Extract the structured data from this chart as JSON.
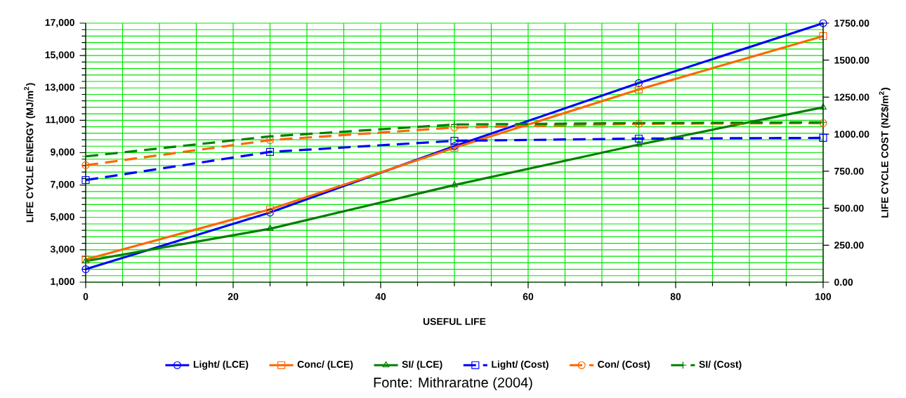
{
  "chart_data": {
    "type": "line",
    "xlabel": "USEFUL LIFE",
    "ylabel": "LIFE CYCLE ENERGY (MJ/m$^{2}$)",
    "y2label": "LIFE CYCLE COST (NZ$/m$^{2}$)",
    "x": [
      0,
      25,
      50,
      75,
      100
    ],
    "series": [
      {
        "name": "Light/ (LCE)",
        "color": "#0000ff",
        "marker": "circle",
        "line_style": "solid",
        "values": [
          1800,
          5300,
          9400,
          13300,
          17000
        ]
      },
      {
        "name": "Conc/ (LCE)",
        "color": "#ff6600",
        "marker": "square",
        "line_style": "solid",
        "values": [
          2400,
          5500,
          9300,
          12900,
          16200
        ]
      },
      {
        "name": "SI/ (LCE)",
        "color": "#008000",
        "marker": "triangle",
        "line_style": "solid",
        "values": [
          2300,
          4300,
          7000,
          9500,
          11800
        ]
      },
      {
        "name": "Light/ (Cost)",
        "color": "#0000ff",
        "marker": "square",
        "line_style": "dashed",
        "axis": "y2",
        "values": [
          690,
          880,
          955,
          970,
          975
        ]
      },
      {
        "name": "Con/ (Cost)",
        "color": "#ff6600",
        "marker": "circle",
        "line_style": "dashed",
        "axis": "y2",
        "values": [
          790,
          960,
          1045,
          1070,
          1075
        ]
      },
      {
        "name": "SI/ (Cost)",
        "color": "#008000",
        "marker": "cross",
        "line_style": "dashed",
        "axis": "y2",
        "values": [
          850,
          985,
          1065,
          1075,
          1080
        ]
      }
    ],
    "xlim": [
      0,
      100
    ],
    "xticks": [
      0,
      20,
      40,
      60,
      80,
      100
    ],
    "ylim": [
      1000,
      17000
    ],
    "yticks": [
      {
        "value": 1000,
        "label": "1,000"
      },
      {
        "value": 3000,
        "label": "3,000"
      },
      {
        "value": 5000,
        "label": "5,000"
      },
      {
        "value": 7000,
        "label": "7,000"
      },
      {
        "value": 9000,
        "label": "9,000"
      },
      {
        "value": 11000,
        "label": "11,000"
      },
      {
        "value": 13000,
        "label": "13,000"
      },
      {
        "value": 15000,
        "label": "15,000"
      },
      {
        "value": 17000,
        "label": "17,000"
      }
    ],
    "y2lim": [
      0,
      1750
    ],
    "y2ticks": [
      {
        "value": 0,
        "label": "0.00"
      },
      {
        "value": 250,
        "label": "250.00"
      },
      {
        "value": 500,
        "label": "500.00"
      },
      {
        "value": 750,
        "label": "750.00"
      },
      {
        "value": 1000,
        "label": "1000.00"
      },
      {
        "value": 1250,
        "label": "1250.00"
      },
      {
        "value": 1500,
        "label": "1500.00"
      },
      {
        "value": 1750,
        "label": "1750.00"
      }
    ],
    "grid": true,
    "legend": "bottom",
    "annotations": [
      "Fonte: Mithraratne (2004)"
    ]
  }
}
